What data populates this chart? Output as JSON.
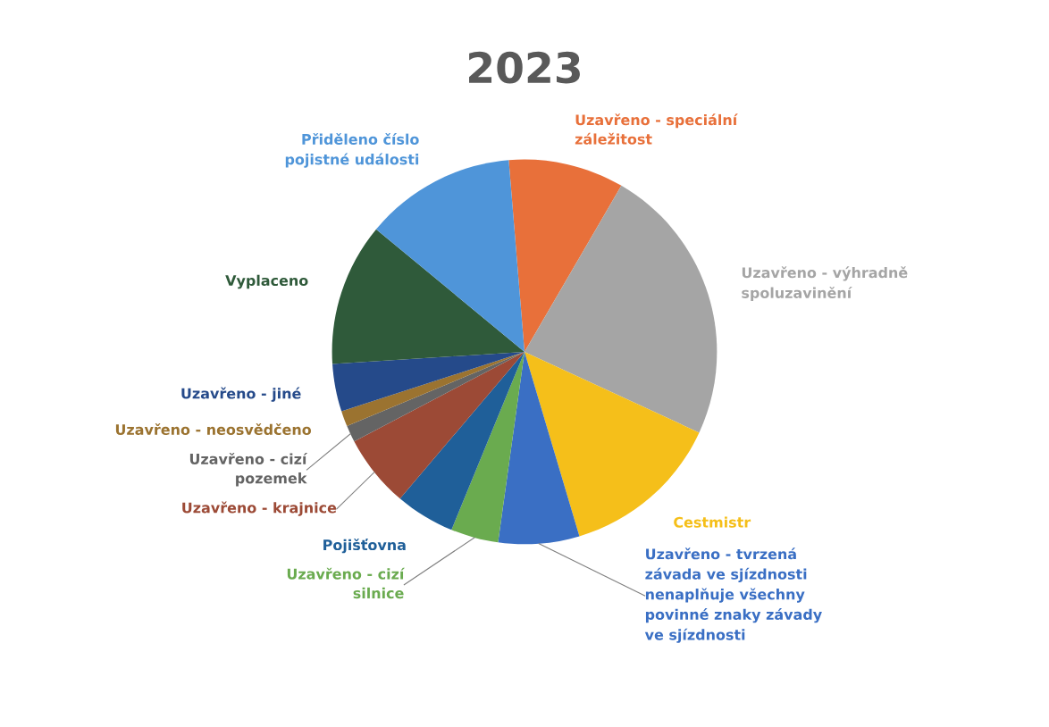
{
  "chart_data": {
    "type": "pie",
    "title": "2023",
    "categories": [
      "Uzavřeno - speciální záležitost",
      "Uzavřeno - výhradně spoluzavinění",
      "Cestmistr",
      "Uzavřeno - tvrzená závada ve sjízdnosti nenaplňuje všechny povinné znaky závady ve sjízdnosti",
      "Uzavřeno - cizí silnice",
      "Pojišťovna",
      "Uzavřeno - krajnice",
      "Uzavřeno - cizí pozemek",
      "Uzavřeno - neosvědčeno",
      "Uzavřeno - jiné",
      "Vyplaceno",
      "Přiděleno číslo pojistné události"
    ],
    "values": [
      9.7,
      23.5,
      13.5,
      6.8,
      4.0,
      5.0,
      6.1,
      1.4,
      1.3,
      4.0,
      12.0,
      12.7
    ],
    "colors": [
      "#e8703a",
      "#a5a5a5",
      "#f5bf1a",
      "#3a6fc4",
      "#6aab4f",
      "#1f5f99",
      "#9c4a36",
      "#646464",
      "#9b7330",
      "#254a8a",
      "#2f5a3a",
      "#4f95d9"
    ],
    "legend": false
  }
}
